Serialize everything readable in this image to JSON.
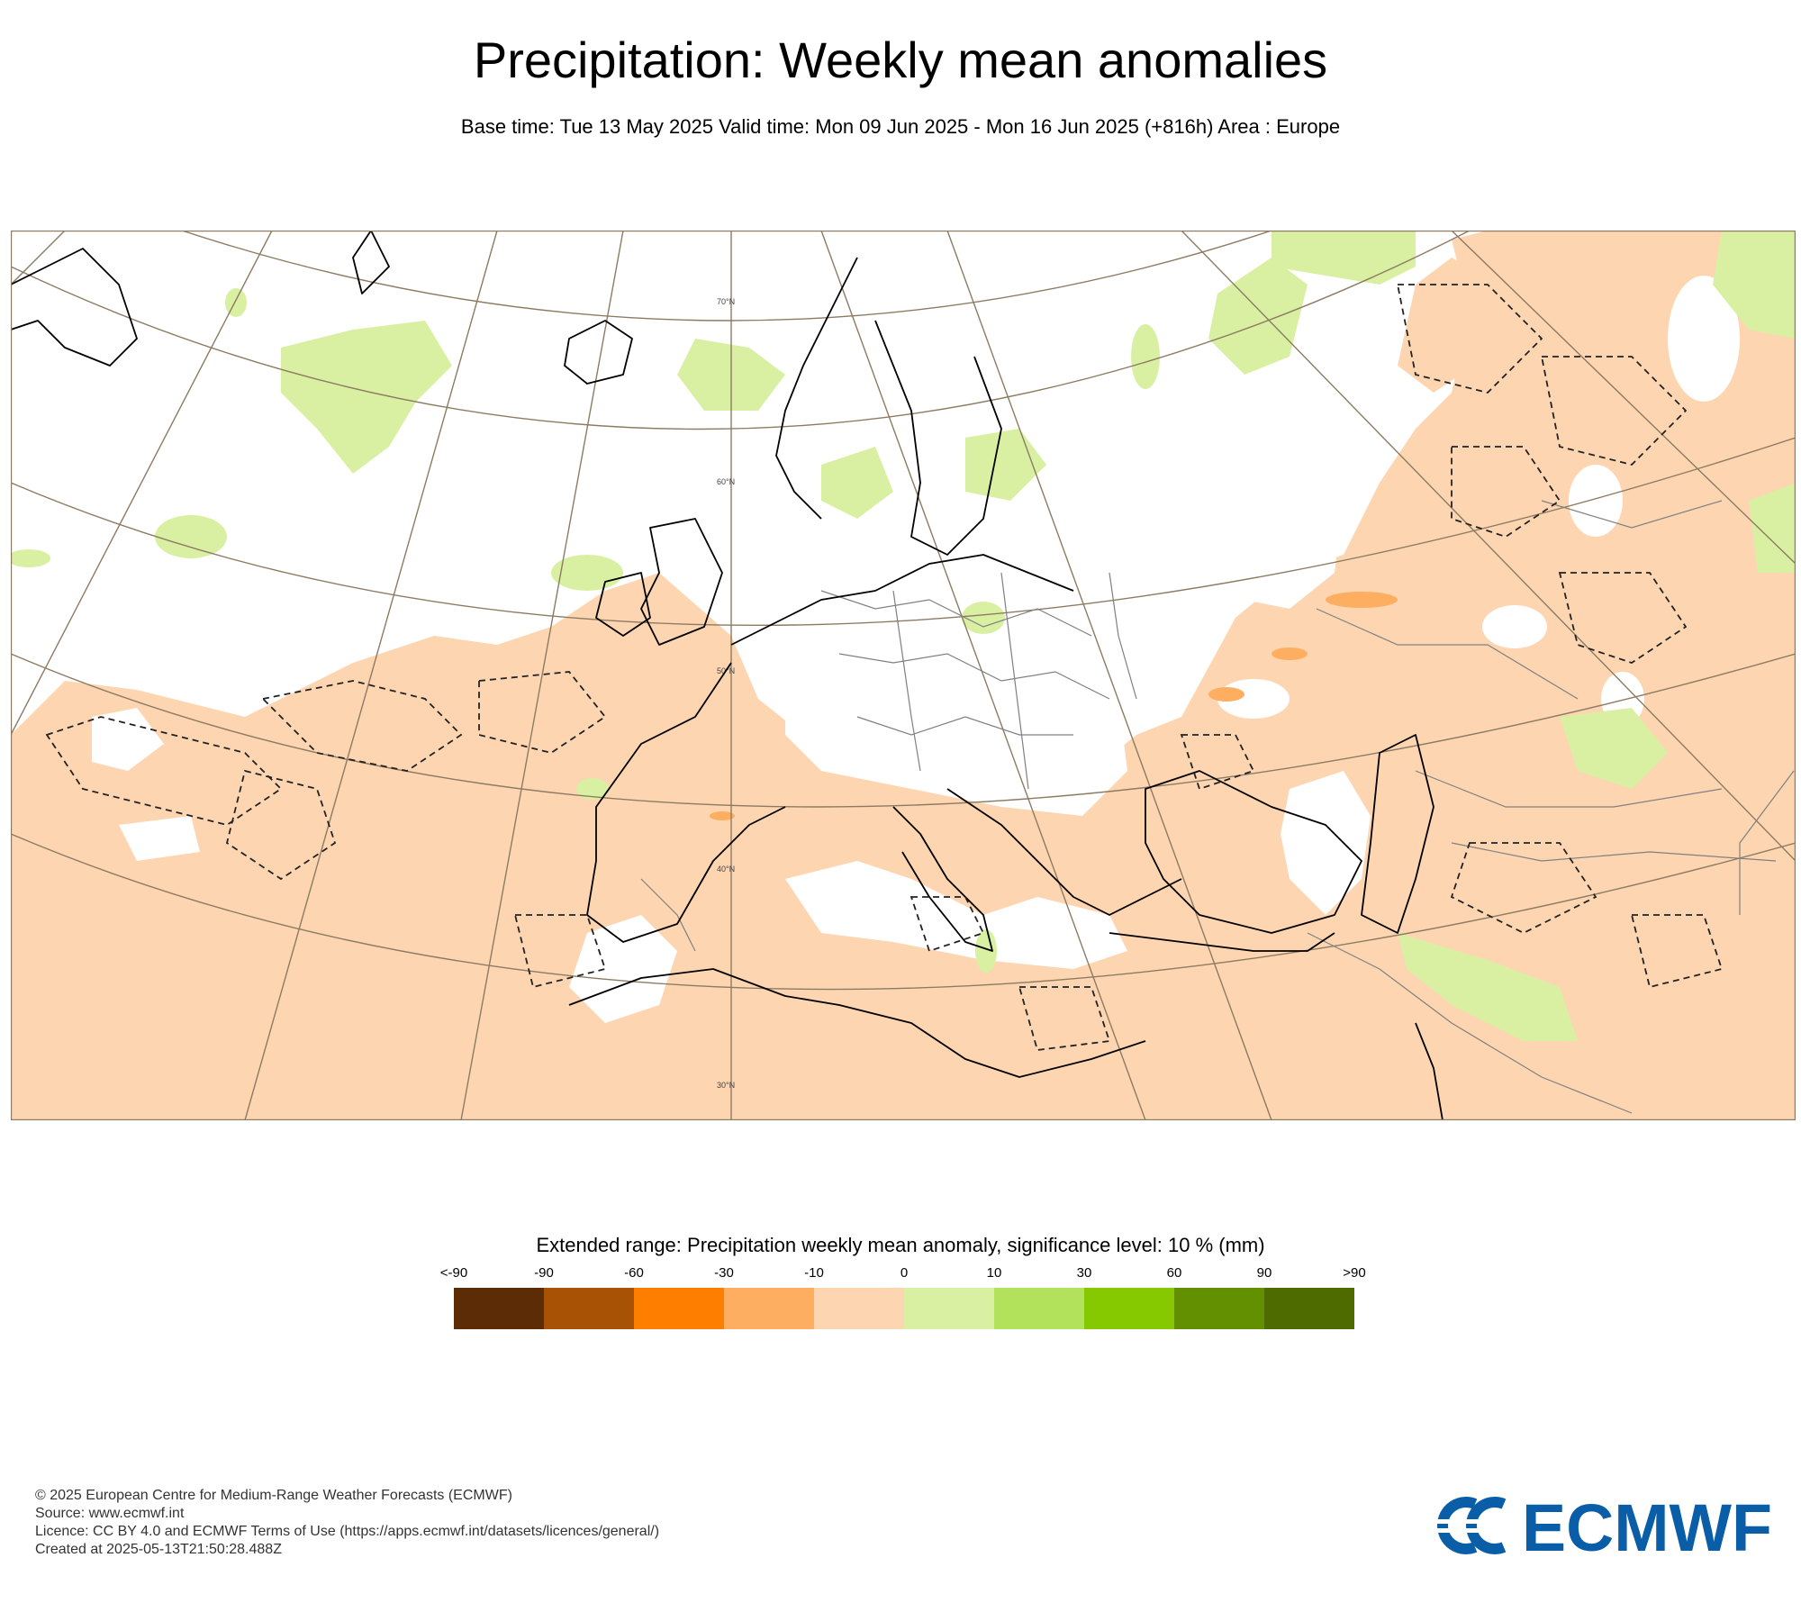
{
  "title": "Precipitation: Weekly mean anomalies",
  "subtitle": "Base time: Tue 13 May 2025 Valid time: Mon 09 Jun 2025 - Mon 16 Jun 2025 (+816h) Area : Europe",
  "map": {
    "lat_labels": [
      "70°N",
      "60°N",
      "50°N",
      "40°N",
      "30°N"
    ],
    "colors": {
      "negative": "#fdd5b1",
      "positive": "#d9f0a3",
      "strong_negative": "#fdae61",
      "coast": "#000000",
      "graticule": "#8c7b62",
      "border": "#808080"
    }
  },
  "legend": {
    "title": "Extended range: Precipitation weekly mean anomaly, significance level: 10 % (mm)",
    "labels": [
      "<-90",
      "-90",
      "-60",
      "-30",
      "-10",
      "0",
      "10",
      "30",
      "60",
      "90",
      ">90"
    ],
    "colors": [
      "#5b2c06",
      "#a85206",
      "#fe7f00",
      "#fdae61",
      "#fdd5b1",
      "#d9f0a3",
      "#b2e15c",
      "#87c900",
      "#629000",
      "#4e6b00"
    ]
  },
  "footer": {
    "copyright": "© 2025 European Centre for Medium-Range Weather Forecasts (ECMWF)",
    "source": "Source: www.ecmwf.int",
    "licence": "Licence: CC BY 4.0 and ECMWF Terms of Use (https://apps.ecmwf.int/datasets/licences/general/)",
    "created": "Created at 2025-05-13T21:50:28.488Z"
  },
  "logo": {
    "text": "ECMWF",
    "color": "#0a5ea8"
  }
}
